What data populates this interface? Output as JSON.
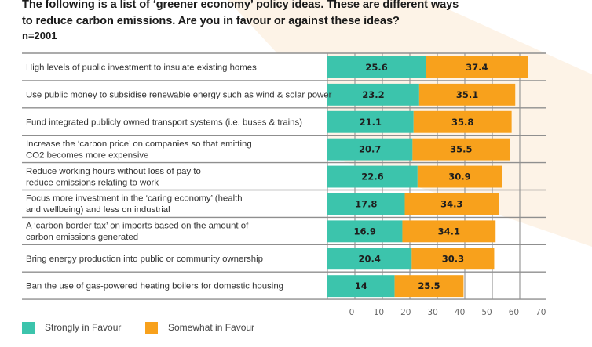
{
  "title_line1": "The following is a list of ‘greener economy’ policy ideas. These are different ways",
  "title_line2": "to reduce carbon emissions. Are you in favour or against these ideas?",
  "sample_size": "n=2001",
  "colors": {
    "strongly": "#3cc4ac",
    "somewhat": "#f8a11c",
    "background_shape": "#fdf3e7",
    "grid": "#8a8a8a"
  },
  "legend": [
    {
      "label": "Strongly in Favour",
      "color_key": "strongly"
    },
    {
      "label": "Somewhat in Favour",
      "color_key": "somewhat"
    }
  ],
  "chart_data": {
    "type": "bar",
    "orientation": "horizontal",
    "stacked": true,
    "title": "The following is a list of ‘greener economy’ policy ideas. These are different ways to reduce carbon emissions. Are you in favour or against these ideas?",
    "subtitle": "n=2001",
    "xlabel": "",
    "ylabel": "",
    "xlim": [
      0,
      70
    ],
    "x_ticks": [
      "0",
      "10",
      "20",
      "30",
      "40",
      "50",
      "60",
      "70"
    ],
    "grid": true,
    "legend_position": "bottom-left",
    "categories": [
      [
        "High levels of public investment to insulate existing homes"
      ],
      [
        "Use public money to subsidise renewable energy such as wind & solar power"
      ],
      [
        "Fund integrated publicly owned transport systems (i.e. buses & trains)"
      ],
      [
        "Increase the ‘carbon price’ on companies so that emitting",
        "CO2 becomes more expensive"
      ],
      [
        "Reduce working hours without loss of pay to",
        "reduce emissions relating to work"
      ],
      [
        "Focus more investment in the ‘caring economy’ (health",
        "and wellbeing) and less on industrial"
      ],
      [
        "A ‘carbon border tax’ on imports based on the amount of",
        "carbon emissions generated"
      ],
      [
        "Bring energy production into public or community ownership"
      ],
      [
        "Ban the use of gas-powered heating boilers for domestic housing"
      ]
    ],
    "series": [
      {
        "name": "Strongly in Favour",
        "values": [
          25.6,
          23.2,
          21.1,
          20.7,
          22.6,
          17.8,
          16.9,
          20.4,
          14
        ],
        "labels": [
          "25.6",
          "23.2",
          "21.1",
          "20.7",
          "22.6",
          "17.8",
          "16.9",
          "20.4",
          "14"
        ]
      },
      {
        "name": "Somewhat in Favour",
        "values": [
          37.4,
          35.1,
          35.8,
          35.5,
          30.9,
          34.3,
          34.1,
          30.3,
          25.5
        ],
        "labels": [
          "37.4",
          "35.1",
          "35.8",
          "35.5",
          "30.9",
          "34.3",
          "34.1",
          "30.3",
          "25.5"
        ]
      }
    ]
  }
}
